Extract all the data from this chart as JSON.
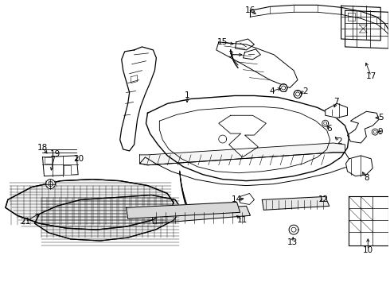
{
  "background_color": "#ffffff",
  "line_color": "#000000",
  "fig_width": 4.9,
  "fig_height": 3.6,
  "dpi": 100,
  "label_fontsize": 7.5
}
